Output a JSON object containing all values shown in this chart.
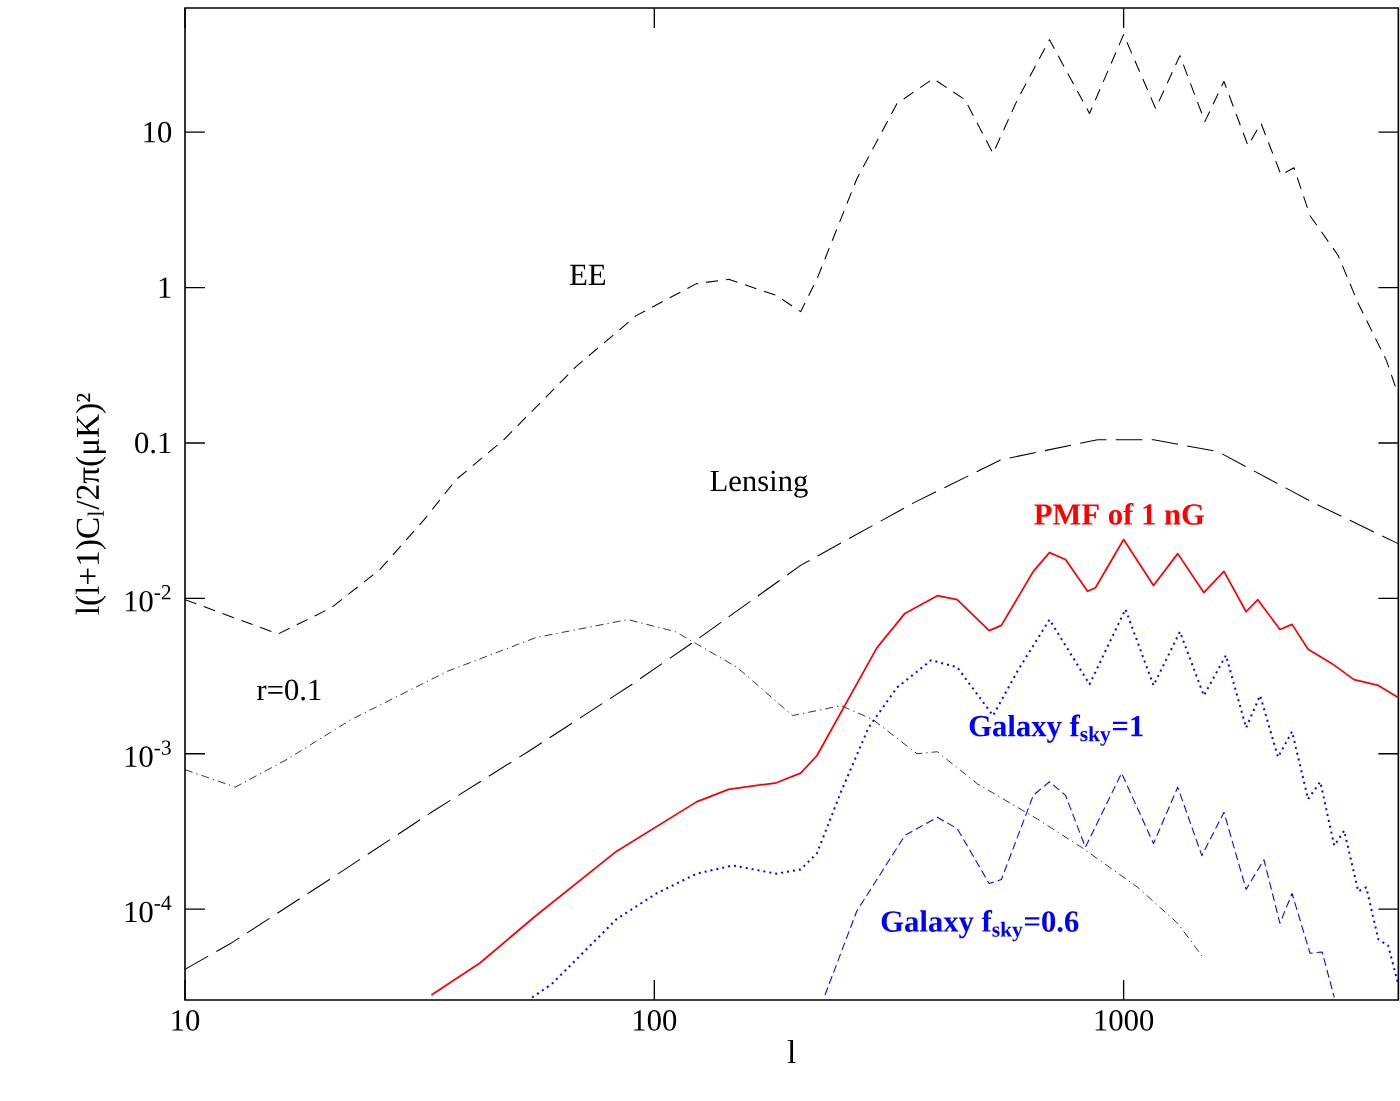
{
  "chart_data": {
    "type": "line",
    "log": "xy",
    "xlabel": "l",
    "ylabel": "l(l+1)C$_{l}$/2π(μK)²",
    "xlim": [
      10,
      3850
    ],
    "ylim": [
      2.6e-05,
      63
    ],
    "xticks": [
      10,
      100,
      1000
    ],
    "yticks": [
      {
        "value": 0.0001,
        "label": "10$^{-4}$"
      },
      {
        "value": 0.001,
        "label": "10$^{-3}$"
      },
      {
        "value": 0.01,
        "label": "10$^{-2}$"
      },
      0.1,
      1,
      10
    ],
    "marker": "none",
    "series": [
      {
        "name": "EE",
        "color": "#000000",
        "line_style": "dashed",
        "x": [
          10,
          15.8,
          20.5,
          26,
          32.3,
          37.8,
          47.8,
          68.1,
          91.5,
          123,
          144,
          182,
          205,
          222,
          270,
          329,
          393,
          459,
          527,
          594,
          695,
          846,
          1000,
          1170,
          1318,
          1490,
          1636,
          1841,
          1963,
          2165,
          2307,
          2496,
          2865,
          3162,
          3630,
          3846
        ],
        "values": [
          0.0098,
          0.0059,
          0.0087,
          0.0153,
          0.032,
          0.058,
          0.105,
          0.31,
          0.66,
          1.06,
          1.13,
          0.89,
          0.7,
          1.13,
          5.0,
          15.3,
          22.1,
          16.2,
          7.3,
          16.2,
          39.4,
          13.2,
          42.5,
          14.2,
          31.1,
          11.7,
          21.2,
          8.2,
          11.4,
          5.3,
          5.9,
          2.9,
          1.61,
          0.79,
          0.34,
          0.205
        ]
      },
      {
        "name": "Lensing",
        "color": "#000000",
        "line_style": "long dashed",
        "x": [
          10,
          12.5,
          20.9,
          33.5,
          53.8,
          89.7,
          123,
          205,
          356,
          548,
          880,
          1158,
          1588,
          2547,
          3846
        ],
        "values": [
          4.1e-05,
          6e-05,
          0.000164,
          0.00042,
          0.00103,
          0.0028,
          0.0054,
          0.0163,
          0.041,
          0.078,
          0.105,
          0.105,
          0.088,
          0.041,
          0.0225
        ]
      },
      {
        "name": "r=0.1",
        "color": "#000000",
        "line_style": "dashdotted",
        "x": [
          10,
          12.8,
          16.5,
          22.6,
          36.3,
          56,
          87.9,
          111,
          150,
          197,
          250,
          292,
          363,
          401,
          488,
          655,
          813,
          1072,
          1304,
          1468
        ],
        "values": [
          0.00079,
          0.00061,
          0.00092,
          0.00166,
          0.0034,
          0.0056,
          0.0073,
          0.0061,
          0.0036,
          0.00176,
          0.00204,
          0.00166,
          0.001,
          0.00103,
          0.00064,
          0.00038,
          0.00025,
          0.000138,
          8.1e-05,
          5e-05
        ]
      },
      {
        "name": "PMF of 1 nG",
        "color": "#ff0000",
        "line_style": "solid",
        "x": [
          33.5,
          42.5,
          56,
          83,
          123,
          144,
          182,
          205,
          222,
          298,
          342,
          401,
          442,
          517,
          549,
          642,
          695,
          752,
          838,
          871,
          1000,
          1158,
          1304,
          1482,
          1636,
          1824,
          1932,
          2153,
          2285,
          2472,
          2780,
          3097,
          3489,
          3846
        ],
        "values": [
          2.8e-05,
          4.5e-05,
          9.1e-05,
          0.000235,
          0.00049,
          0.00059,
          0.00065,
          0.00075,
          0.00097,
          0.0048,
          0.008,
          0.0104,
          0.0098,
          0.0062,
          0.0067,
          0.0149,
          0.0197,
          0.0178,
          0.0111,
          0.0117,
          0.0239,
          0.0121,
          0.0194,
          0.0109,
          0.0149,
          0.0082,
          0.0098,
          0.0063,
          0.0068,
          0.0047,
          0.0038,
          0.003,
          0.00275,
          0.0023
        ]
      },
      {
        "name": "Galaxy f$_{sky}$=1",
        "color": "#0000ff",
        "line_style": "dotted",
        "x": [
          54.9,
          60.5,
          83,
          101,
          123,
          147,
          182,
          205,
          222,
          250,
          286,
          329,
          389,
          442,
          527,
          594,
          695,
          846,
          1009,
          1158,
          1318,
          1482,
          1652,
          1824,
          1954,
          2133,
          2285,
          2472,
          2624,
          2811,
          2951,
          3162,
          3289,
          3489,
          3664,
          3846
        ],
        "values": [
          2.7e-05,
          3.3e-05,
          8.6e-05,
          0.000126,
          0.000169,
          0.000191,
          0.000169,
          0.00018,
          0.000228,
          0.00057,
          0.00147,
          0.00267,
          0.004,
          0.0036,
          0.00176,
          0.0034,
          0.0073,
          0.0028,
          0.0085,
          0.00275,
          0.0061,
          0.00237,
          0.0043,
          0.00147,
          0.00237,
          0.00095,
          0.00139,
          0.00051,
          0.00066,
          0.000256,
          0.00032,
          0.00013,
          0.000138,
          6.4e-05,
          5.8e-05,
          3.3e-05
        ]
      },
      {
        "name": "Galaxy f$_{sky}$=0.6",
        "color": "#0000ff",
        "line_style": "dashed",
        "x": [
          231,
          270,
          342,
          401,
          442,
          517,
          549,
          642,
          695,
          752,
          829,
          990,
          1158,
          1304,
          1468,
          1636,
          1824,
          1991,
          2153,
          2285,
          2496,
          2649,
          2811
        ],
        "values": [
          2.8e-05,
          9.7e-05,
          0.000298,
          0.00039,
          0.00033,
          0.000146,
          0.000155,
          0.00054,
          0.00066,
          0.00054,
          0.00025,
          0.00075,
          0.000264,
          0.00061,
          0.000221,
          0.00042,
          0.000134,
          0.000208,
          8.1e-05,
          0.000126,
          5.2e-05,
          5.3e-05,
          2.7e-05
        ]
      }
    ]
  }
}
